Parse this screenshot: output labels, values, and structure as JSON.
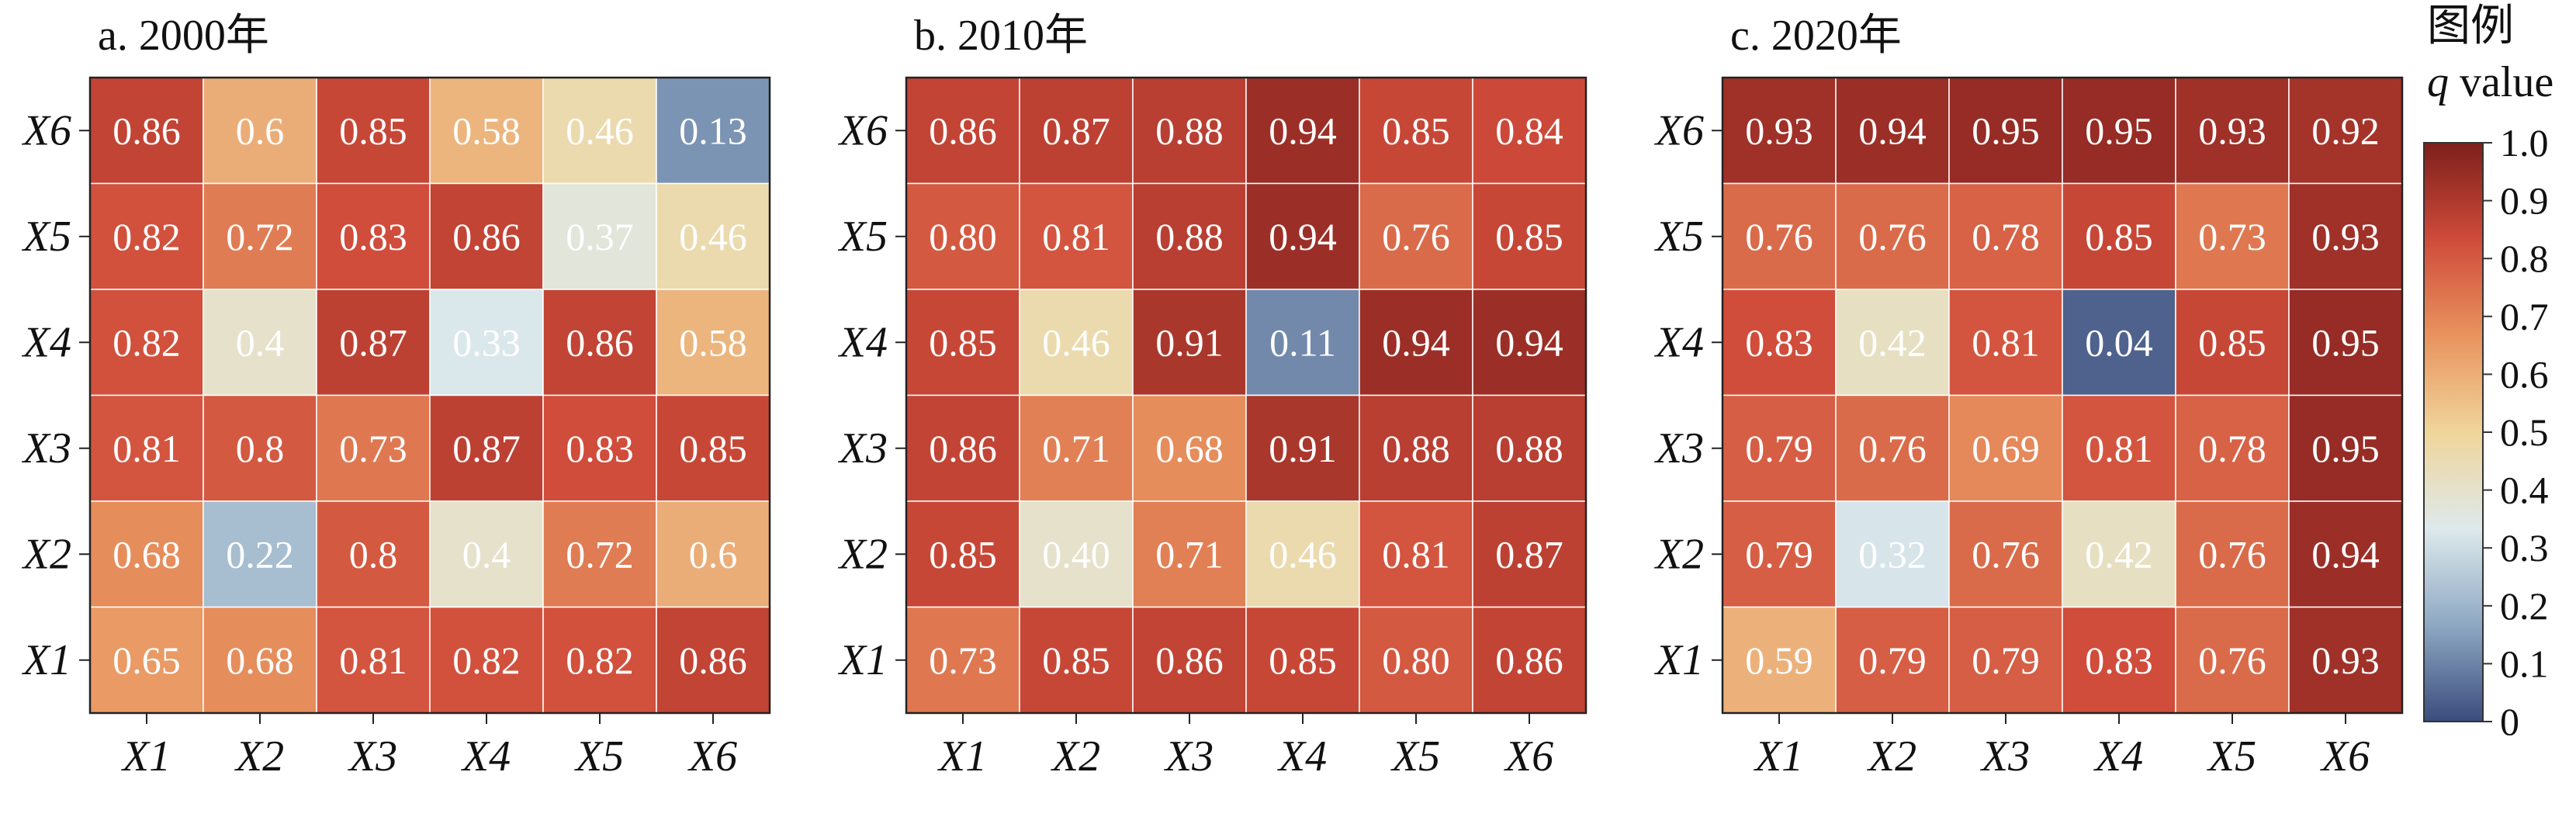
{
  "legend": {
    "title_line1": "图例",
    "title_line2_italic": "q",
    "title_line2_rest": " value",
    "ticks": [
      "0",
      "0.1",
      "0.2",
      "0.3",
      "0.4",
      "0.5",
      "0.6",
      "0.7",
      "0.8",
      "0.9",
      "1.0"
    ],
    "range": [
      0,
      1
    ],
    "colormap": [
      "#3b4c7c",
      "#8ea8c3",
      "#dde9ec",
      "#f0d59a",
      "#e8935f",
      "#cf4b3a",
      "#7d1f1c"
    ]
  },
  "chart_data": [
    {
      "type": "heatmap",
      "title": "a. 2000年",
      "x_labels": [
        "X1",
        "X2",
        "X3",
        "X4",
        "X5",
        "X6"
      ],
      "y_labels": [
        "X6",
        "X5",
        "X4",
        "X3",
        "X2",
        "X1"
      ],
      "cell_labels": [
        [
          "0.86",
          "0.6",
          "0.85",
          "0.58",
          "0.46",
          "0.13"
        ],
        [
          "0.82",
          "0.72",
          "0.83",
          "0.86",
          "0.37",
          "0.46"
        ],
        [
          "0.82",
          "0.4",
          "0.87",
          "0.33",
          "0.86",
          "0.58"
        ],
        [
          "0.81",
          "0.8",
          "0.73",
          "0.87",
          "0.83",
          "0.85"
        ],
        [
          "0.68",
          "0.22",
          "0.8",
          "0.4",
          "0.72",
          "0.6"
        ],
        [
          "0.65",
          "0.68",
          "0.81",
          "0.82",
          "0.82",
          "0.86"
        ]
      ]
    },
    {
      "type": "heatmap",
      "title": "b. 2010年",
      "x_labels": [
        "X1",
        "X2",
        "X3",
        "X4",
        "X5",
        "X6"
      ],
      "y_labels": [
        "X6",
        "X5",
        "X4",
        "X3",
        "X2",
        "X1"
      ],
      "cell_labels": [
        [
          "0.86",
          "0.87",
          "0.88",
          "0.94",
          "0.85",
          "0.84"
        ],
        [
          "0.80",
          "0.81",
          "0.88",
          "0.94",
          "0.76",
          "0.85"
        ],
        [
          "0.85",
          "0.46",
          "0.91",
          "0.11",
          "0.94",
          "0.94"
        ],
        [
          "0.86",
          "0.71",
          "0.68",
          "0.91",
          "0.88",
          "0.88"
        ],
        [
          "0.85",
          "0.40",
          "0.71",
          "0.46",
          "0.81",
          "0.87"
        ],
        [
          "0.73",
          "0.85",
          "0.86",
          "0.85",
          "0.80",
          "0.86"
        ]
      ]
    },
    {
      "type": "heatmap",
      "title": "c. 2020年",
      "x_labels": [
        "X1",
        "X2",
        "X3",
        "X4",
        "X5",
        "X6"
      ],
      "y_labels": [
        "X6",
        "X5",
        "X4",
        "X3",
        "X2",
        "X1"
      ],
      "cell_labels": [
        [
          "0.93",
          "0.94",
          "0.95",
          "0.95",
          "0.93",
          "0.92"
        ],
        [
          "0.76",
          "0.76",
          "0.78",
          "0.85",
          "0.73",
          "0.93"
        ],
        [
          "0.83",
          "0.42",
          "0.81",
          "0.04",
          "0.85",
          "0.95"
        ],
        [
          "0.79",
          "0.76",
          "0.69",
          "0.81",
          "0.78",
          "0.95"
        ],
        [
          "0.79",
          "0.32",
          "0.76",
          "0.42",
          "0.76",
          "0.94"
        ],
        [
          "0.59",
          "0.79",
          "0.79",
          "0.83",
          "0.76",
          "0.93"
        ]
      ]
    }
  ]
}
